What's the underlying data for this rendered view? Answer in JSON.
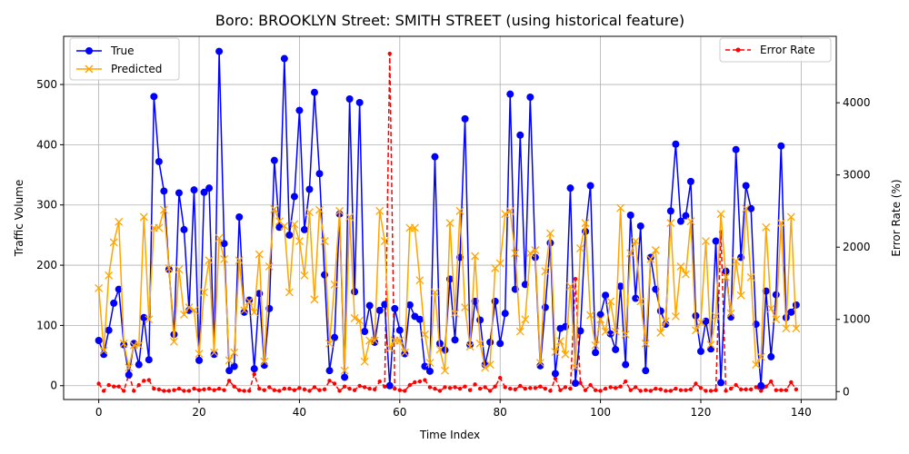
{
  "chart_data": {
    "type": "line",
    "title": "Boro: BROOKLYN Street: SMITH STREET (using historical feature)",
    "xlabel": "Time Index",
    "ylabel": "Traffic Volume",
    "ylabel_right": "Error Rate (%)",
    "xlim": [
      -7,
      147
    ],
    "ylim": [
      -23,
      580
    ],
    "ylim_right": [
      -110,
      4920
    ],
    "xticks": [
      0,
      20,
      40,
      60,
      80,
      100,
      120,
      140
    ],
    "yticks": [
      0,
      100,
      200,
      300,
      400,
      500
    ],
    "yticks_right": [
      0,
      1000,
      2000,
      3000,
      4000
    ],
    "grid": true,
    "legend_left": "top-left",
    "legend_right": "top-right",
    "colors": {
      "true": "#0000ff",
      "predicted": "#ffa500",
      "error": "#ff0000"
    },
    "x_start": 0,
    "series": [
      {
        "name": "True",
        "axis": "left",
        "marker": "circle",
        "values": [
          75,
          52,
          92,
          137,
          160,
          68,
          18,
          70,
          35,
          113,
          43,
          480,
          372,
          323,
          193,
          85,
          320,
          259,
          125,
          325,
          42,
          321,
          328,
          52,
          555,
          236,
          25,
          32,
          280,
          122,
          142,
          28,
          153,
          34,
          128,
          374,
          263,
          543,
          250,
          314,
          457,
          259,
          326,
          487,
          352,
          184,
          25,
          80,
          285,
          14,
          476,
          156,
          470,
          90,
          133,
          72,
          125,
          135,
          0,
          128,
          92,
          53,
          134,
          115,
          110,
          32,
          24,
          380,
          70,
          59,
          177,
          76,
          213,
          443,
          68,
          140,
          109,
          35,
          72,
          140,
          70,
          120,
          484,
          160,
          416,
          168,
          479,
          213,
          33,
          130,
          237,
          20,
          95,
          98,
          328,
          4,
          91,
          256,
          332,
          55,
          118,
          150,
          86,
          60,
          165,
          35,
          283,
          145,
          265,
          25,
          213,
          160,
          124,
          102,
          290,
          401,
          273,
          282,
          339,
          116,
          57,
          107,
          61,
          240,
          5,
          190,
          114,
          392,
          213,
          332,
          294,
          102,
          0,
          157,
          48,
          151,
          398,
          113,
          122,
          134
        ]
      },
      {
        "name": "Predicted",
        "axis": "left",
        "marker": "x",
        "values": [
          162,
          58,
          183,
          238,
          272,
          70,
          30,
          67,
          67,
          280,
          110,
          262,
          262,
          292,
          195,
          73,
          193,
          118,
          130,
          125,
          53,
          155,
          208,
          55,
          245,
          210,
          42,
          55,
          208,
          125,
          140,
          122,
          218,
          40,
          198,
          293,
          273,
          265,
          155,
          268,
          240,
          183,
          288,
          143,
          292,
          240,
          70,
          168,
          290,
          25,
          280,
          112,
          108,
          40,
          75,
          75,
          290,
          240,
          62,
          75,
          75,
          55,
          262,
          262,
          175,
          85,
          38,
          155,
          60,
          25,
          270,
          120,
          290,
          130,
          65,
          215,
          70,
          30,
          35,
          195,
          203,
          285,
          290,
          220,
          90,
          110,
          220,
          225,
          38,
          190,
          253,
          56,
          74,
          52,
          165,
          30,
          228,
          270,
          117,
          67,
          110,
          90,
          140,
          90,
          295,
          85,
          220,
          240,
          140,
          70,
          210,
          225,
          88,
          107,
          270,
          115,
          198,
          185,
          273,
          92,
          105,
          240,
          68,
          115,
          285,
          180,
          120,
          207,
          150,
          294,
          180,
          35,
          48,
          263,
          128,
          110,
          270,
          95,
          280,
          95
        ]
      },
      {
        "name": "Error Rate",
        "axis": "right",
        "marker": "dot",
        "style": "dashed",
        "values": [
          110,
          10,
          90,
          70,
          70,
          10,
          240,
          10,
          90,
          150,
          160,
          40,
          30,
          10,
          10,
          20,
          40,
          10,
          10,
          40,
          20,
          30,
          40,
          20,
          40,
          20,
          150,
          70,
          20,
          10,
          10,
          240,
          40,
          20,
          60,
          20,
          10,
          40,
          40,
          20,
          50,
          30,
          10,
          60,
          20,
          30,
          150,
          110,
          10,
          70,
          40,
          20,
          80,
          60,
          40,
          30,
          140,
          70,
          4680,
          40,
          20,
          10,
          90,
          130,
          140,
          160,
          60,
          40,
          10,
          60,
          50,
          60,
          40,
          70,
          20,
          100,
          40,
          60,
          10,
          70,
          190,
          60,
          40,
          30,
          80,
          40,
          50,
          50,
          70,
          40,
          10,
          180,
          20,
          60,
          40,
          1560,
          120,
          20,
          90,
          20,
          10,
          40,
          60,
          50,
          70,
          140,
          20,
          60,
          10,
          20,
          10,
          40,
          30,
          10,
          10,
          40,
          20,
          20,
          30,
          110,
          50,
          10,
          10,
          20,
          2210,
          10,
          40,
          90,
          30,
          30,
          30,
          60,
          10,
          70,
          140,
          20,
          20,
          20,
          130,
          30
        ]
      }
    ]
  }
}
